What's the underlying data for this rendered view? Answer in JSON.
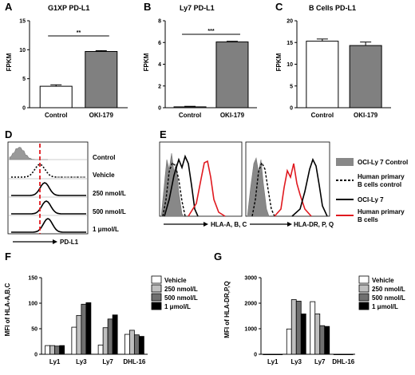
{
  "panel_labels": [
    "A",
    "B",
    "C",
    "D",
    "E",
    "F",
    "G"
  ],
  "panel_a": {
    "title": "G1XP PD-L1",
    "ylabel": "FPKM",
    "significance": "**",
    "categories": [
      "Control",
      "OKI-179"
    ],
    "values": [
      3.7,
      9.7
    ],
    "errors": [
      0.25,
      0.15
    ],
    "ylim": [
      0,
      15
    ],
    "yticks": [
      0,
      5,
      10,
      15
    ],
    "fills": [
      "#ffffff",
      "#808080"
    ]
  },
  "panel_b": {
    "title": "Ly7 PD-L1",
    "ylabel": "FPKM",
    "significance": "***",
    "categories": [
      "Control",
      "OKI-179"
    ],
    "values": [
      0.08,
      6.05
    ],
    "errors": [
      0.05,
      0.06
    ],
    "ylim": [
      0,
      8
    ],
    "yticks": [
      0,
      2,
      4,
      6,
      8
    ],
    "fills": [
      "#ffffff",
      "#808080"
    ]
  },
  "panel_c": {
    "title": "B Cells PD-L1",
    "ylabel": "FPKM",
    "categories": [
      "Control",
      "OKI-179"
    ],
    "values": [
      15.3,
      14.3
    ],
    "errors": [
      0.5,
      0.8
    ],
    "ylim": [
      0,
      20
    ],
    "yticks": [
      0,
      5,
      10,
      15,
      20
    ],
    "fills": [
      "#ffffff",
      "#808080"
    ]
  },
  "panel_d": {
    "rows": [
      "Control",
      "Vehicle",
      "250 nmol/L",
      "500 nmol/L",
      "1 μmol/L"
    ],
    "xlabel": "PD-L1"
  },
  "panel_e": {
    "left_xlabel": "HLA-A, B, C",
    "right_xlabel": "HLA-DR, P, Q",
    "legend": [
      {
        "label": "OCI-Ly 7 Control",
        "style": "filled",
        "color": "#888888"
      },
      {
        "label": "Human primary B cells control",
        "lines": [
          "Human primary",
          "B cells control"
        ],
        "style": "dashed",
        "color": "#000000"
      },
      {
        "label": "OCI-Ly 7",
        "style": "solid",
        "color": "#000000"
      },
      {
        "label": "Human primary B cells",
        "lines": [
          "Human primary",
          "B cells"
        ],
        "style": "solid",
        "color": "#e0191f"
      }
    ]
  },
  "chart_data": [
    {
      "type": "bar",
      "panel": "F",
      "categories": [
        "Ly1",
        "Ly3",
        "Ly7",
        "DHL-16"
      ],
      "series": [
        {
          "name": "Vehicle",
          "values": [
            17,
            53,
            18,
            39
          ]
        },
        {
          "name": "250 nmol/L",
          "values": [
            17,
            76,
            52,
            47
          ]
        },
        {
          "name": "500 nmol/L",
          "values": [
            16,
            98,
            69,
            38
          ]
        },
        {
          "name": "1 μmol/L",
          "values": [
            17,
            101,
            77,
            35
          ]
        }
      ],
      "ylabel": "MFI of HLA-A,B,C",
      "ylim": [
        0,
        150
      ],
      "yticks": [
        0,
        50,
        100,
        150
      ],
      "legend_position": "top-right"
    },
    {
      "type": "bar",
      "panel": "G",
      "categories": [
        "Ly1",
        "Ly3",
        "Ly7",
        "DHL-16"
      ],
      "series": [
        {
          "name": "Vehicle",
          "values": [
            0,
            990,
            2060,
            0
          ]
        },
        {
          "name": "250 nmol/L",
          "values": [
            0,
            2140,
            1580,
            0
          ]
        },
        {
          "name": "500 nmol/L",
          "values": [
            0,
            2080,
            1120,
            0
          ]
        },
        {
          "name": "1 μmol/L",
          "values": [
            0,
            1580,
            1090,
            0
          ]
        }
      ],
      "ylabel": "MFI of HLA-DR,P,Q",
      "ylim": [
        0,
        3000
      ],
      "yticks": [
        0,
        1000,
        2000,
        3000
      ],
      "legend_position": "top-right"
    }
  ],
  "series_fills": [
    "#ffffff",
    "#bfbfbf",
    "#707070",
    "#000000"
  ]
}
